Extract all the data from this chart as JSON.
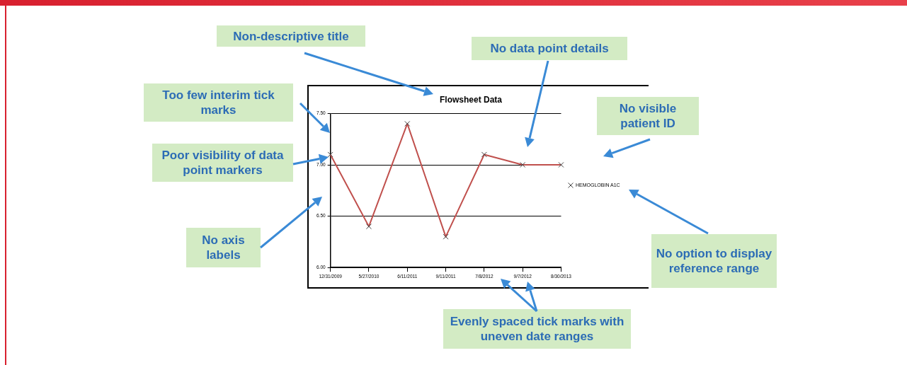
{
  "chart_data": {
    "type": "line",
    "title": "Flowsheet Data",
    "categories": [
      "12/31/2009",
      "5/27/2010",
      "6/11/2011",
      "9/11/2011",
      "7/8/2012",
      "9/7/2012",
      "8/30/2013"
    ],
    "series": [
      {
        "name": "HEMOGLOBIN A1C",
        "color": "#c0504d",
        "values": [
          7.1,
          6.4,
          7.4,
          6.3,
          7.1,
          7.0,
          7.0
        ]
      }
    ],
    "ylim": [
      6,
      7.5
    ],
    "yticks": [
      {
        "value": 6,
        "label": "6.00"
      },
      {
        "value": 6.5,
        "label": "6.50"
      },
      {
        "value": 7,
        "label": "7.00"
      },
      {
        "value": 7.5,
        "label": "7.50"
      }
    ],
    "grid": "y",
    "legend": "right",
    "marker": "cross",
    "line_style": "solid",
    "annotations": [
      "Non-descriptive title",
      "No data point details",
      "Too few interim tick marks",
      "No visible patient ID",
      "Poor visibility of data point markers",
      "No axis labels",
      "No option to display reference range",
      "Evenly spaced tick marks with uneven date ranges"
    ]
  }
}
